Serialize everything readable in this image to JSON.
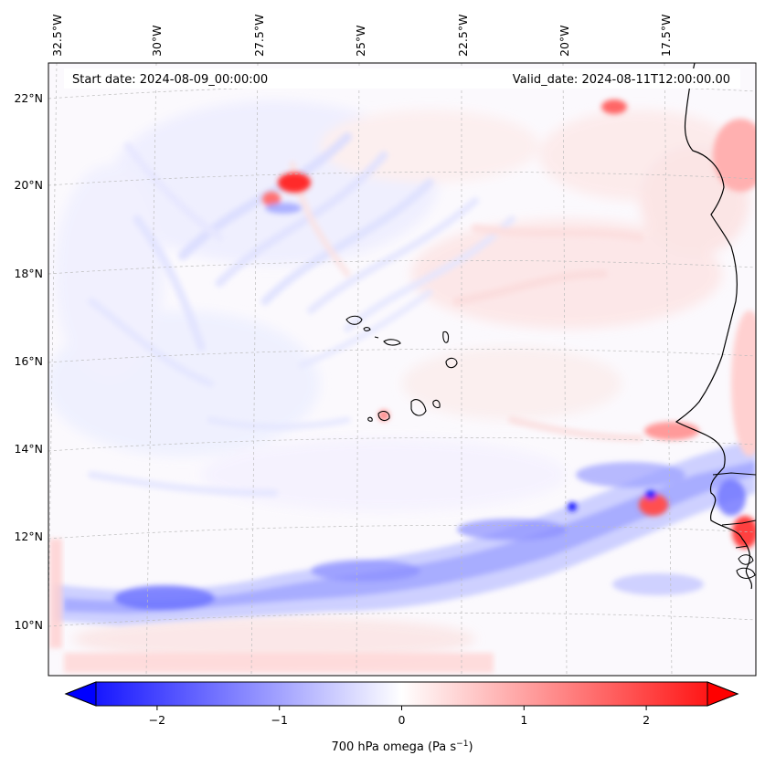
{
  "header": {
    "start_date": "Start date: 2024-08-09_00:00:00",
    "valid_date": "Valid_date: 2024-08-11T12:00:00.00"
  },
  "longitude_labels": [
    "32.5°W",
    "30°W",
    "27.5°W",
    "25°W",
    "22.5°W",
    "20°W",
    "17.5°W"
  ],
  "latitude_labels": [
    "22°N",
    "20°N",
    "18°N",
    "16°N",
    "14°N",
    "12°N",
    "10°N"
  ],
  "colorbar": {
    "ticks": [
      "−2",
      "−1",
      "0",
      "1",
      "2"
    ],
    "tick_values": [
      -2,
      -1,
      0,
      1,
      2
    ],
    "range": [
      -2.5,
      2.5
    ],
    "label": "700 hPa omega (Pa s",
    "label_unit_sup": "−1",
    "label_end": ")",
    "colors": {
      "low": "#0000ff",
      "mid": "#ffffff",
      "high": "#ff0000"
    }
  },
  "map": {
    "projection": "Lambert conformal",
    "lon_range": [
      -33.0,
      -16.2
    ],
    "lat_range": [
      8.8,
      22.8
    ],
    "field": "700 hPa omega",
    "colors": {
      "coast": "#000000",
      "grid": "#bbbbbb"
    }
  }
}
